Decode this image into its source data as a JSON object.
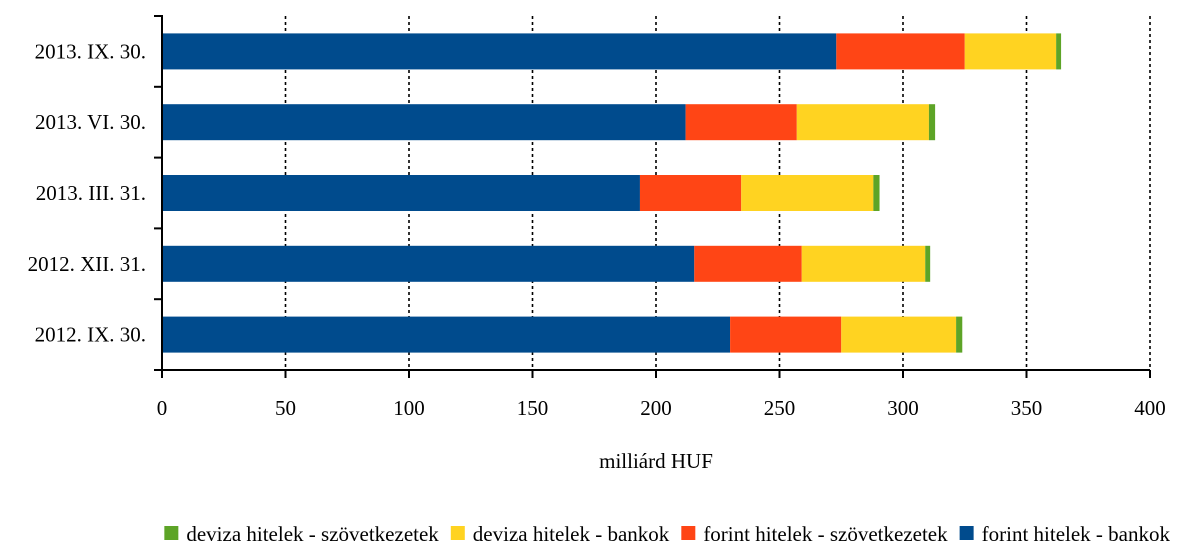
{
  "chart_data": {
    "type": "bar",
    "orientation": "horizontal",
    "stacked": true,
    "categories": [
      "2013. IX. 30.",
      "2013. VI. 30.",
      "2013. III. 31.",
      "2012. XII. 31.",
      "2012. IX. 30."
    ],
    "series": [
      {
        "name": "forint hitelek - bankok",
        "color": "#004B8D",
        "values": [
          273,
          212,
          193.5,
          215.5,
          230
        ]
      },
      {
        "name": "forint hitelek - szövetkezetek",
        "color": "#FF4515",
        "values": [
          52,
          45,
          41,
          43.5,
          45
        ]
      },
      {
        "name": "deviza hitelek - bankok",
        "color": "#FFD321",
        "values": [
          37,
          53.5,
          53.5,
          50,
          46.5
        ]
      },
      {
        "name": "deviza hitelek - szövetkezetek",
        "color": "#5DA427",
        "values": [
          2,
          2.5,
          2.5,
          2,
          2.5
        ]
      }
    ],
    "xlabel": "milliárd HUF",
    "xlim": [
      0,
      400
    ],
    "xticks": [
      0,
      50,
      100,
      150,
      200,
      250,
      300,
      350,
      400
    ],
    "grid": "vertical dotted",
    "legend_position": "bottom",
    "legend_order": [
      "deviza hitelek - szövetkezetek",
      "deviza hitelek - bankok",
      "forint hitelek - szövetkezetek",
      "forint hitelek - bankok"
    ]
  }
}
